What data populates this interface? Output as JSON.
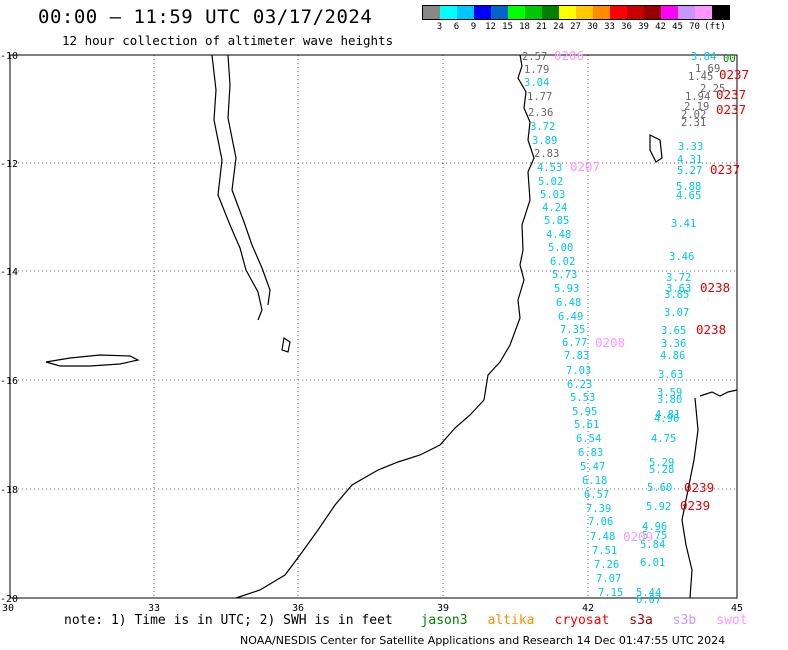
{
  "title": "00:00 – 11:59 UTC 03/17/2024",
  "subtitle": "12 hour collection of altimeter wave heights",
  "legend": {
    "colors": [
      "#888888",
      "#00ffff",
      "#00c8ff",
      "#0000ff",
      "#0064c8",
      "#00ff00",
      "#00c800",
      "#008000",
      "#ffff00",
      "#ffc800",
      "#ff8c00",
      "#ff0000",
      "#c80000",
      "#960000",
      "#ff00ff",
      "#c896ff",
      "#ff96ff",
      "#000000"
    ],
    "labels": [
      "3",
      "6",
      "9",
      "12",
      "15",
      "18",
      "21",
      "24",
      "27",
      "30",
      "33",
      "36",
      "39",
      "42",
      "45",
      "70",
      "(ft)"
    ]
  },
  "axes": {
    "y_labels": [
      "-10",
      "-12",
      "-14",
      "-16",
      "-18",
      "-20"
    ],
    "x_labels": [
      "30",
      "33",
      "36",
      "39",
      "42",
      "45"
    ]
  },
  "note": {
    "prefix": "note: 1) Time is in UTC; 2) SWH is in feet",
    "satellites": [
      {
        "name": "jason3",
        "color": "#008000"
      },
      {
        "name": "altika",
        "color": "#ff8c00"
      },
      {
        "name": "cryosat",
        "color": "#ff0000"
      },
      {
        "name": "s3a",
        "color": "#960000"
      },
      {
        "name": "s3b",
        "color": "#c896ff"
      },
      {
        "name": "swot",
        "color": "#ff96ff"
      }
    ]
  },
  "credit": "NOAA/NESDIS Center for Satellite Applications and Research   14 Dec 01:47:55 UTC 2024",
  "observations": [
    {
      "t": "2.57",
      "c": "#666666"
    },
    {
      "t": "1.79",
      "c": "#666666"
    },
    {
      "t": "3.04",
      "c": "#00c8e8"
    },
    {
      "t": "1.77",
      "c": "#666666"
    },
    {
      "t": "2.36",
      "c": "#666666"
    },
    {
      "t": "3.72",
      "c": "#00c8e8"
    },
    {
      "t": "3.89",
      "c": "#00c8e8"
    },
    {
      "t": "2.83",
      "c": "#666666"
    },
    {
      "t": "4.53",
      "c": "#00c8e8"
    },
    {
      "t": "5.02",
      "c": "#00c8e8"
    },
    {
      "t": "5.03",
      "c": "#00c8e8"
    },
    {
      "t": "4.24",
      "c": "#00c8e8"
    },
    {
      "t": "5.85",
      "c": "#00c8e8"
    },
    {
      "t": "4.48",
      "c": "#00c8e8"
    },
    {
      "t": "5.00",
      "c": "#00c8e8"
    },
    {
      "t": "6.02",
      "c": "#00c8e8"
    },
    {
      "t": "5.73",
      "c": "#00c8e8"
    },
    {
      "t": "5.93",
      "c": "#00c8e8"
    },
    {
      "t": "6.48",
      "c": "#00c8e8"
    },
    {
      "t": "6.49",
      "c": "#00c8e8"
    },
    {
      "t": "7.35",
      "c": "#00c8e8"
    },
    {
      "t": "6.77",
      "c": "#00c8e8"
    },
    {
      "t": "7.83",
      "c": "#00c8e8"
    },
    {
      "t": "7.03",
      "c": "#00c8e8"
    },
    {
      "t": "6.23",
      "c": "#00c8e8"
    },
    {
      "t": "5.53",
      "c": "#00c8e8"
    },
    {
      "t": "5.95",
      "c": "#00c8e8"
    },
    {
      "t": "5.61",
      "c": "#00c8e8"
    },
    {
      "t": "6.54",
      "c": "#00c8e8"
    },
    {
      "t": "6.83",
      "c": "#00c8e8"
    },
    {
      "t": "5.47",
      "c": "#00c8e8"
    },
    {
      "t": "6.18",
      "c": "#00c8e8"
    },
    {
      "t": "6.57",
      "c": "#00c8e8"
    },
    {
      "t": "7.39",
      "c": "#00c8e8"
    },
    {
      "t": "7.06",
      "c": "#00c8e8"
    },
    {
      "t": "7.48",
      "c": "#00c8e8"
    },
    {
      "t": "7.51",
      "c": "#00c8e8"
    },
    {
      "t": "7.26",
      "c": "#00c8e8"
    },
    {
      "t": "7.07",
      "c": "#00c8e8"
    },
    {
      "t": "7.15",
      "c": "#00c8e8"
    },
    {
      "t": "3.84",
      "c": "#00c8e8"
    },
    {
      "t": "1.69",
      "c": "#666666"
    },
    {
      "t": "1.45",
      "c": "#666666"
    },
    {
      "t": "2.25",
      "c": "#666666"
    },
    {
      "t": "1.94",
      "c": "#666666"
    },
    {
      "t": "2.19",
      "c": "#666666"
    },
    {
      "t": "2.02",
      "c": "#666666"
    },
    {
      "t": "2.31",
      "c": "#666666"
    },
    {
      "t": "3.33",
      "c": "#00c8e8"
    },
    {
      "t": "4.31",
      "c": "#00c8e8"
    },
    {
      "t": "5.27",
      "c": "#00c8e8"
    },
    {
      "t": "5.88",
      "c": "#00c8e8"
    },
    {
      "t": "4.65",
      "c": "#00c8e8"
    },
    {
      "t": "3.41",
      "c": "#00c8e8"
    },
    {
      "t": "3.46",
      "c": "#00c8e8"
    },
    {
      "t": "3.72",
      "c": "#00c8e8"
    },
    {
      "t": "3.63",
      "c": "#00c8e8"
    },
    {
      "t": "3.85",
      "c": "#00c8e8"
    },
    {
      "t": "3.07",
      "c": "#00c8e8"
    },
    {
      "t": "3.65",
      "c": "#00c8e8"
    },
    {
      "t": "3.36",
      "c": "#00c8e8"
    },
    {
      "t": "4.86",
      "c": "#00c8e8"
    },
    {
      "t": "3.63",
      "c": "#00c8e8"
    },
    {
      "t": "3.59",
      "c": "#00c8e8"
    },
    {
      "t": "3.80",
      "c": "#00c8e8"
    },
    {
      "t": "4.81",
      "c": "#00c8e8"
    },
    {
      "t": "4.96",
      "c": "#00c8e8"
    },
    {
      "t": "4.75",
      "c": "#00c8e8"
    },
    {
      "t": "5.29",
      "c": "#00c8e8"
    },
    {
      "t": "5.28",
      "c": "#00c8e8"
    },
    {
      "t": "5.60",
      "c": "#00c8e8"
    },
    {
      "t": "5.92",
      "c": "#00c8e8"
    },
    {
      "t": "4.96",
      "c": "#00c8e8"
    },
    {
      "t": "5.75",
      "c": "#00c8e8"
    },
    {
      "t": "5.84",
      "c": "#00c8e8"
    },
    {
      "t": "6.01",
      "c": "#00c8e8"
    },
    {
      "t": "5.44",
      "c": "#00c8e8"
    },
    {
      "t": "6.07",
      "c": "#00c8e8"
    },
    {
      "t": "0206",
      "c": "#ff96ff"
    },
    {
      "t": "0207",
      "c": "#ff96ff"
    },
    {
      "t": "0208",
      "c": "#ff96ff"
    },
    {
      "t": "0209",
      "c": "#ff96ff"
    },
    {
      "t": "0238",
      "c": "#e00000"
    },
    {
      "t": "0238",
      "c": "#e00000"
    },
    {
      "t": "0239",
      "c": "#e00000"
    },
    {
      "t": "0239",
      "c": "#e00000"
    },
    {
      "t": "0237",
      "c": "#e00000"
    },
    {
      "t": "0237",
      "c": "#e00000"
    },
    {
      "t": "0237",
      "c": "#e00000"
    },
    {
      "t": "0237",
      "c": "#e00000"
    },
    {
      "t": "00",
      "c": "#008000"
    }
  ]
}
